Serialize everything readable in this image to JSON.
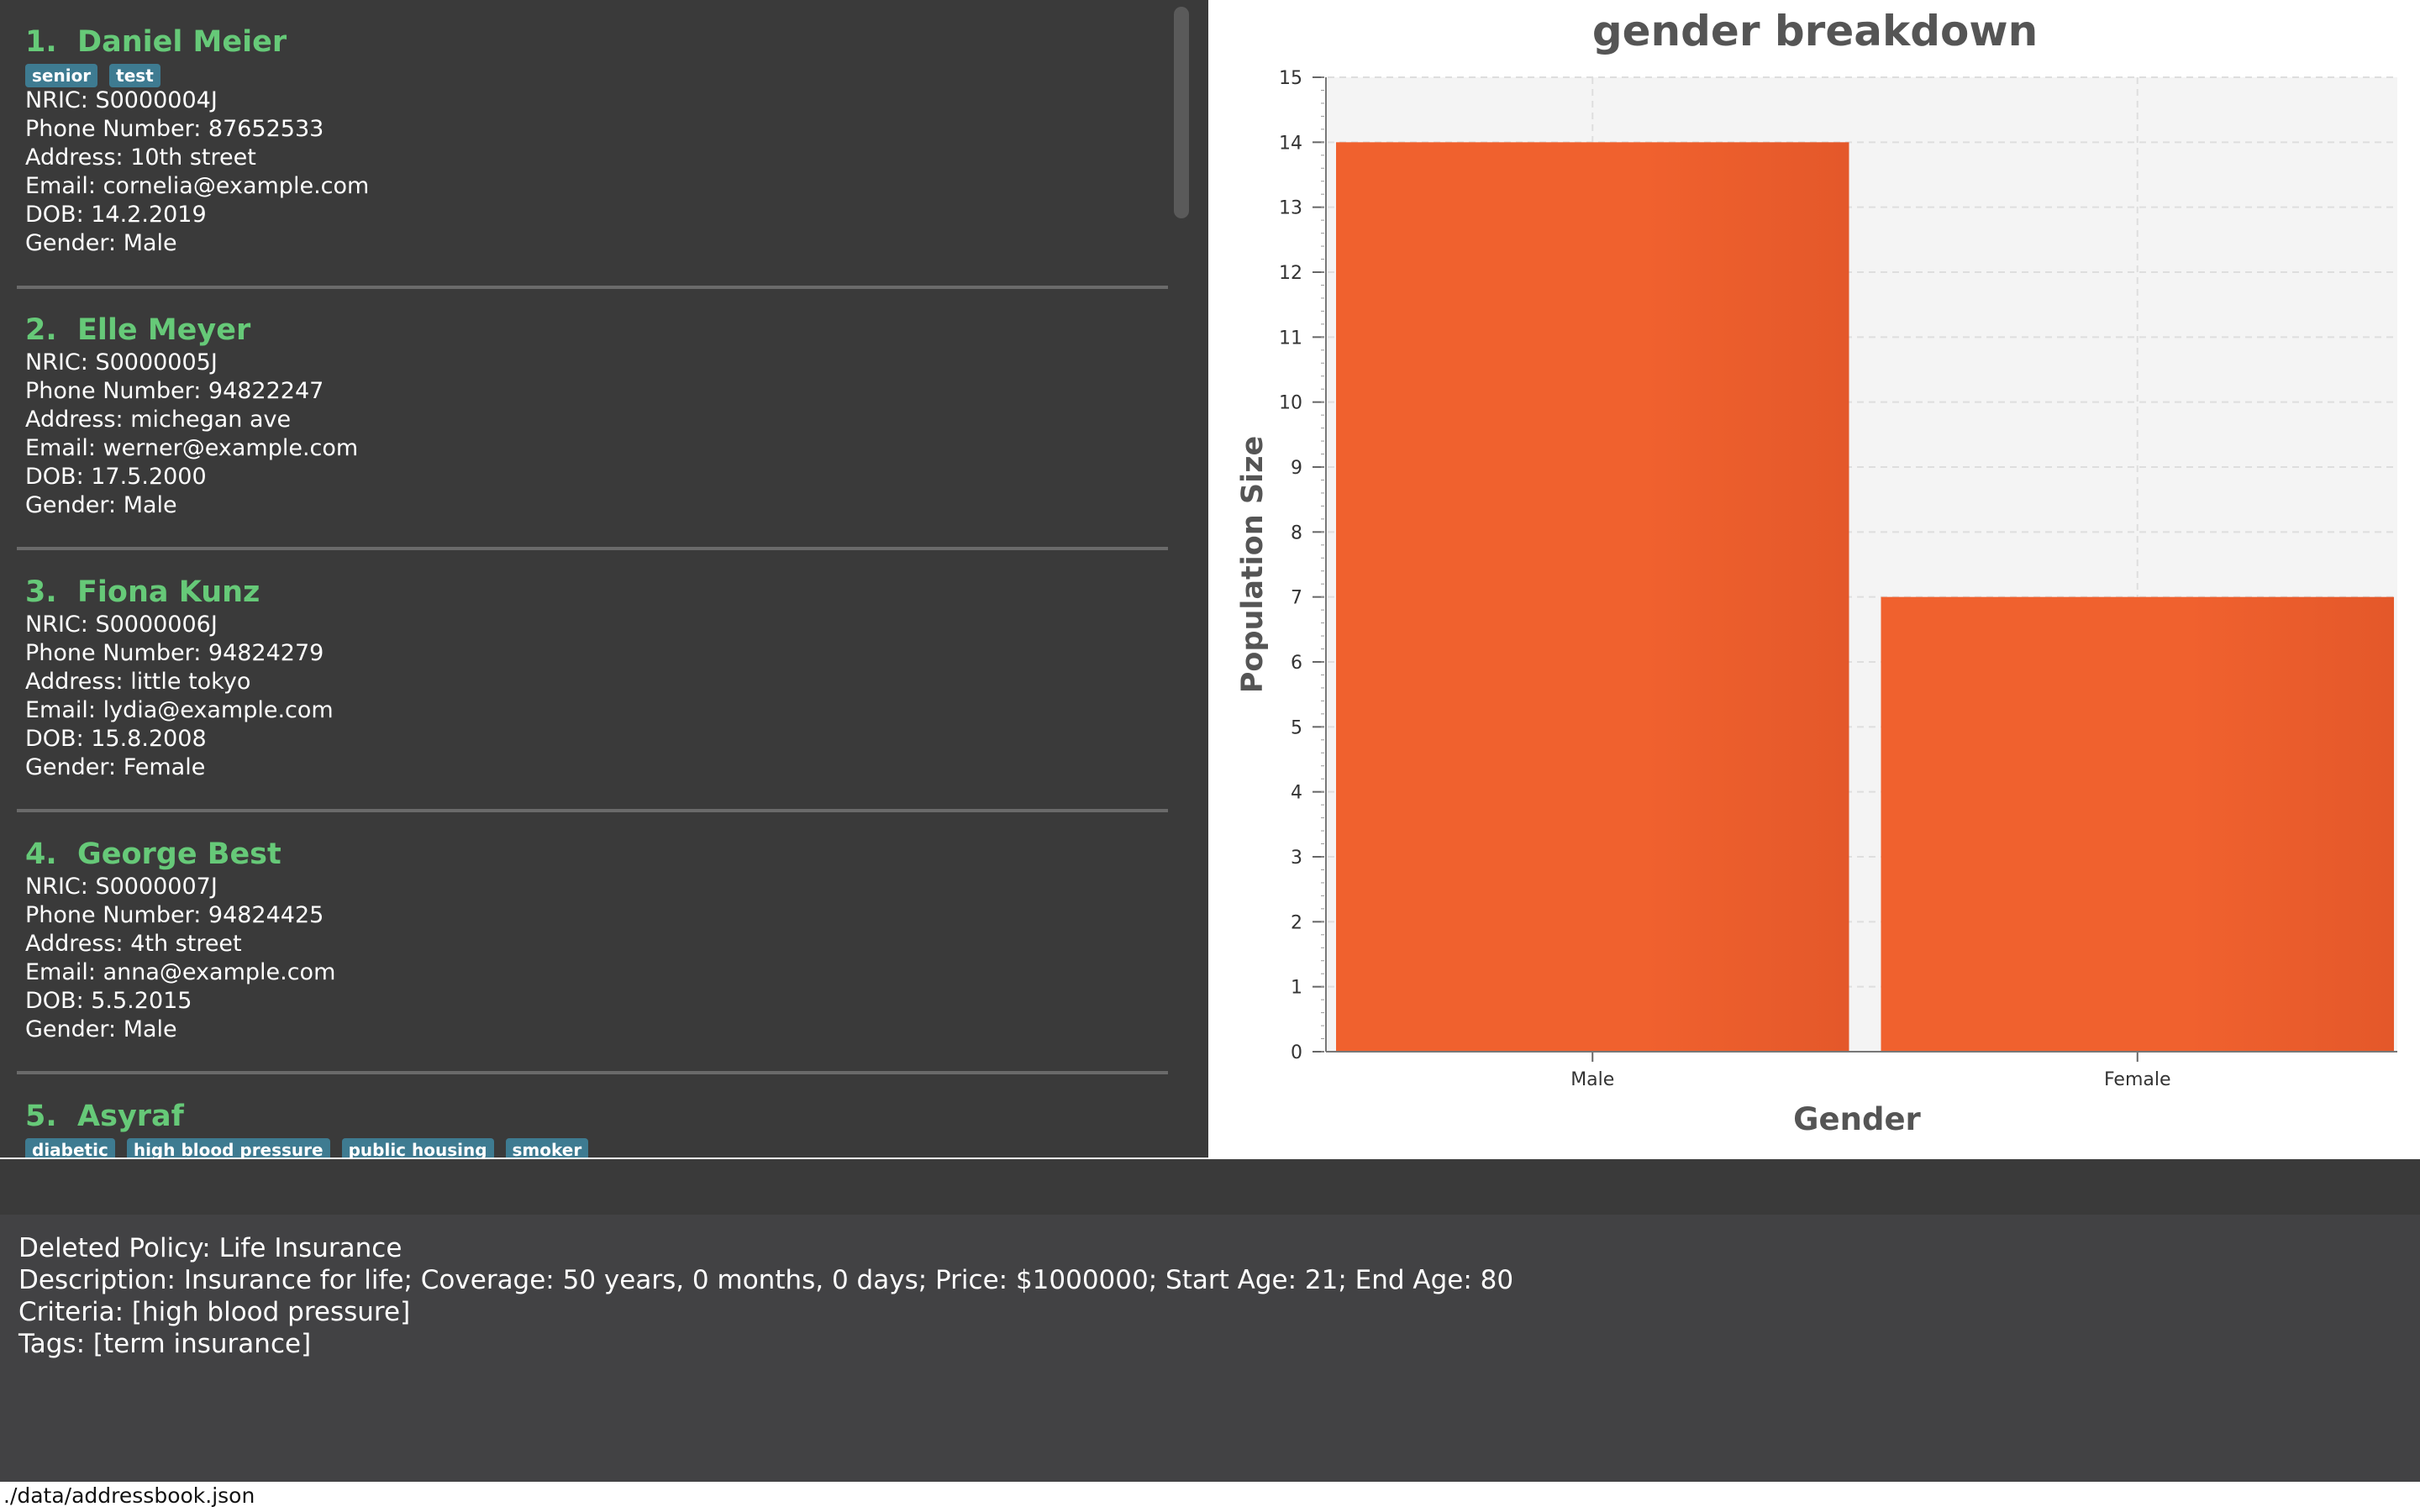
{
  "persons": [
    {
      "index": "1.",
      "name": "Daniel Meier",
      "tags": [
        "senior",
        "test"
      ],
      "nric": "NRIC: S0000004J",
      "phone": "Phone Number: 87652533",
      "address": "Address: 10th street",
      "email": "Email: cornelia@example.com",
      "dob": "DOB: 14.2.2019",
      "gender": "Gender: Male"
    },
    {
      "index": "2.",
      "name": "Elle Meyer",
      "tags": [],
      "nric": "NRIC: S0000005J",
      "phone": "Phone Number: 94822247",
      "address": "Address: michegan ave",
      "email": "Email: werner@example.com",
      "dob": "DOB: 17.5.2000",
      "gender": "Gender: Male"
    },
    {
      "index": "3.",
      "name": "Fiona Kunz",
      "tags": [],
      "nric": "NRIC: S0000006J",
      "phone": "Phone Number: 94824279",
      "address": "Address: little tokyo",
      "email": "Email: lydia@example.com",
      "dob": "DOB: 15.8.2008",
      "gender": "Gender: Female"
    },
    {
      "index": "4.",
      "name": "George Best",
      "tags": [],
      "nric": "NRIC: S0000007J",
      "phone": "Phone Number: 94824425",
      "address": "Address: 4th street",
      "email": "Email: anna@example.com",
      "dob": "DOB: 5.5.2015",
      "gender": "Gender: Male"
    },
    {
      "index": "5.",
      "name": "Asyraf",
      "tags": [
        "diabetic",
        "high blood pressure",
        "public housing",
        "smoker"
      ]
    }
  ],
  "chart_data": {
    "type": "bar",
    "title": "gender breakdown",
    "xlabel": "Gender",
    "ylabel": "Population Size",
    "categories": [
      "Male",
      "Female"
    ],
    "values": [
      14,
      7
    ],
    "ylim": [
      0,
      15
    ],
    "yticks": [
      0,
      1,
      2,
      3,
      4,
      5,
      6,
      7,
      8,
      9,
      10,
      11,
      12,
      13,
      14,
      15
    ],
    "grid": true,
    "bar_color": "#f0612e",
    "plot_background": "#f4f4f4"
  },
  "result_display": {
    "lines": [
      "Deleted Policy: Life Insurance",
      "Description: Insurance for life; Coverage: 50 years, 0 months, 0 days; Price: $1000000; Start Age: 21; End Age: 80",
      "Criteria: [high blood pressure]",
      "Tags: [term insurance]"
    ]
  },
  "status_bar": {
    "file_path": "./data/addressbook.json"
  },
  "colors": {
    "name_green": "#66c978",
    "tag_blue": "#3e7b91",
    "panel_dark": "#3a3a3a",
    "result_bg": "#424244"
  }
}
